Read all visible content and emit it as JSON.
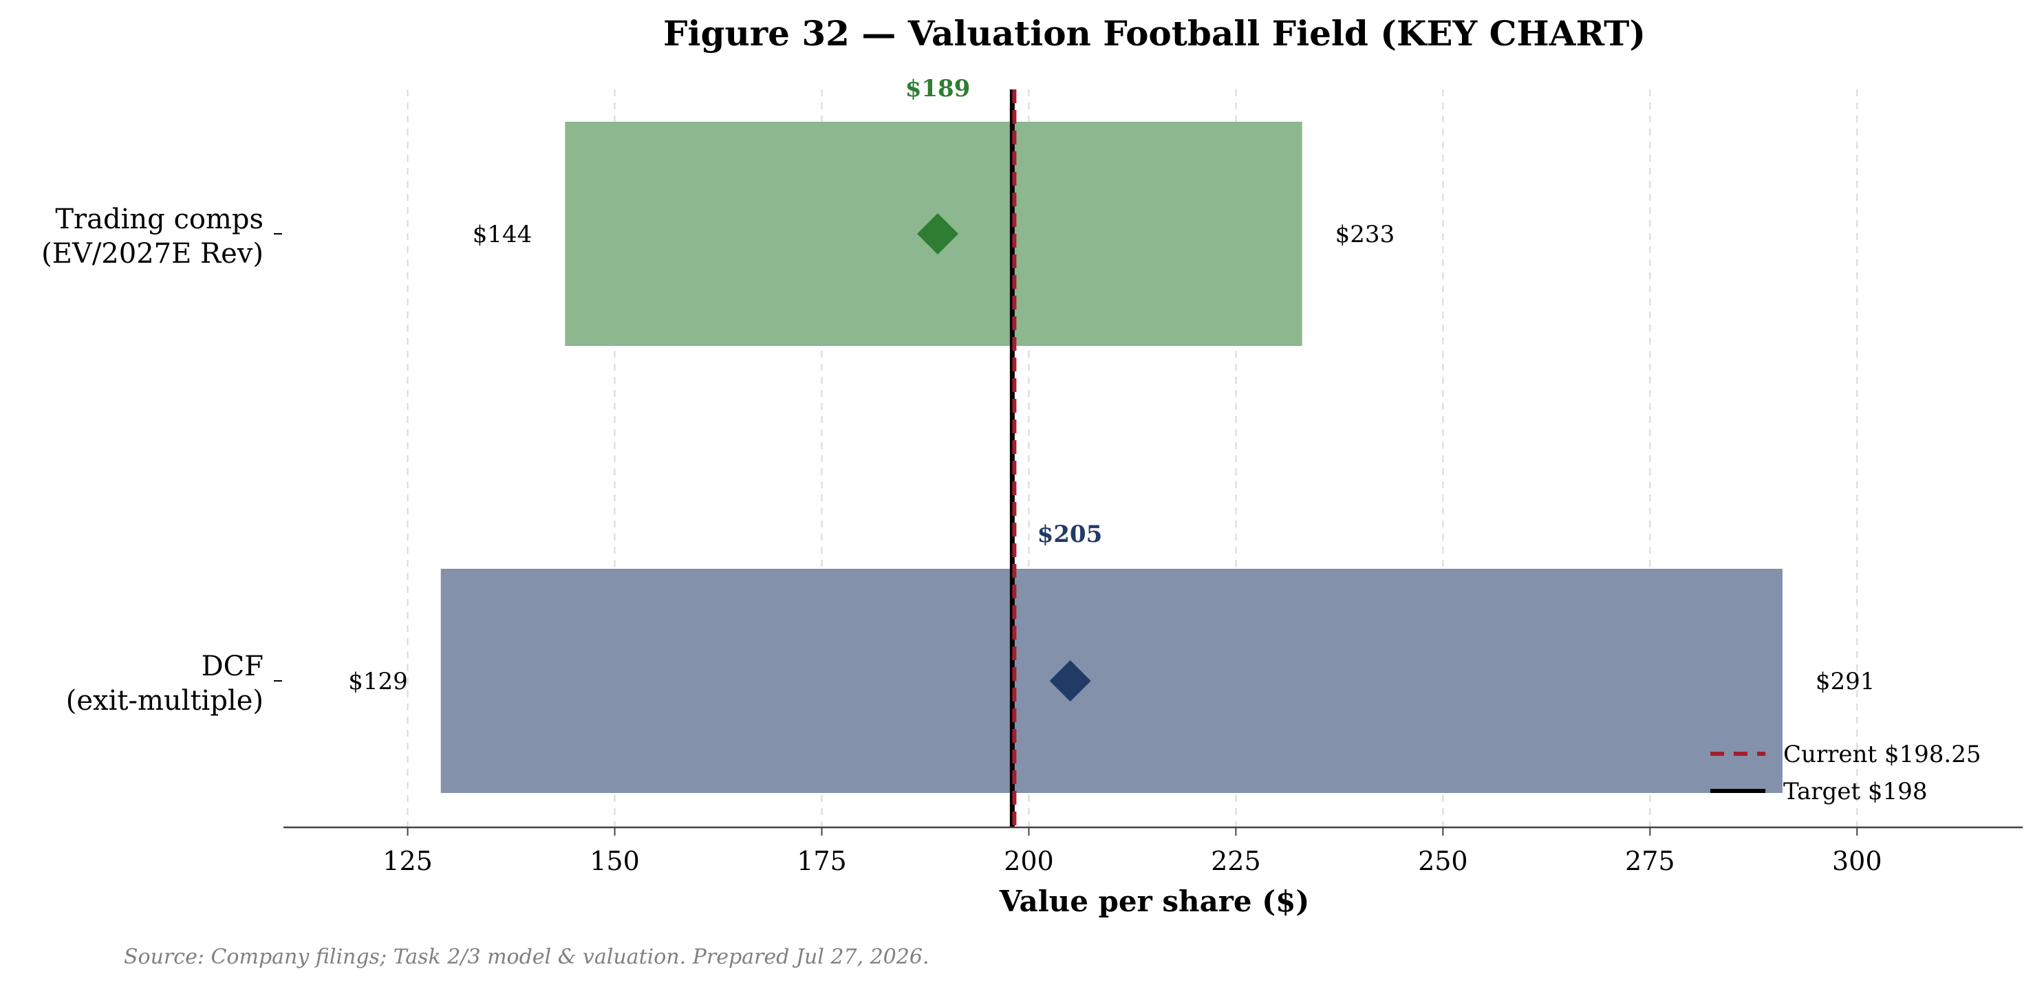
{
  "chart_data": {
    "type": "bar",
    "orientation": "horizontal-range",
    "title": "Figure 32 — Valuation Football Field  (KEY CHART)",
    "xlabel": "Value per share ($)",
    "ylabel": "",
    "xlim": [
      110,
      320
    ],
    "xticks": [
      125,
      150,
      175,
      200,
      225,
      250,
      275,
      300
    ],
    "grid": "x-dashed",
    "legend_position": "lower-right",
    "categories": [
      {
        "lines": [
          "Trading comps",
          "(EV/2027E Rev)"
        ],
        "low": 144,
        "high": 233,
        "mid": 189,
        "low_label": "$144",
        "high_label": "$233",
        "mid_label": "$189",
        "bar_color": "#8db78e",
        "marker_color": "#2e7d32"
      },
      {
        "lines": [
          "DCF",
          "(exit-multiple)"
        ],
        "low": 129,
        "high": 291,
        "mid": 205,
        "low_label": "$129",
        "high_label": "$291",
        "mid_label": "$205",
        "bar_color": "#8391ab",
        "marker_color": "#213a66"
      }
    ],
    "reference_lines": [
      {
        "name": "Current $198.25",
        "value": 198.25,
        "color": "#a31f2e",
        "style": "dashed"
      },
      {
        "name": "Target $198",
        "value": 198,
        "color": "#000000",
        "style": "solid"
      }
    ],
    "source": "Source: Company filings; Task 2/3 model & valuation. Prepared Jul 27, 2026."
  }
}
